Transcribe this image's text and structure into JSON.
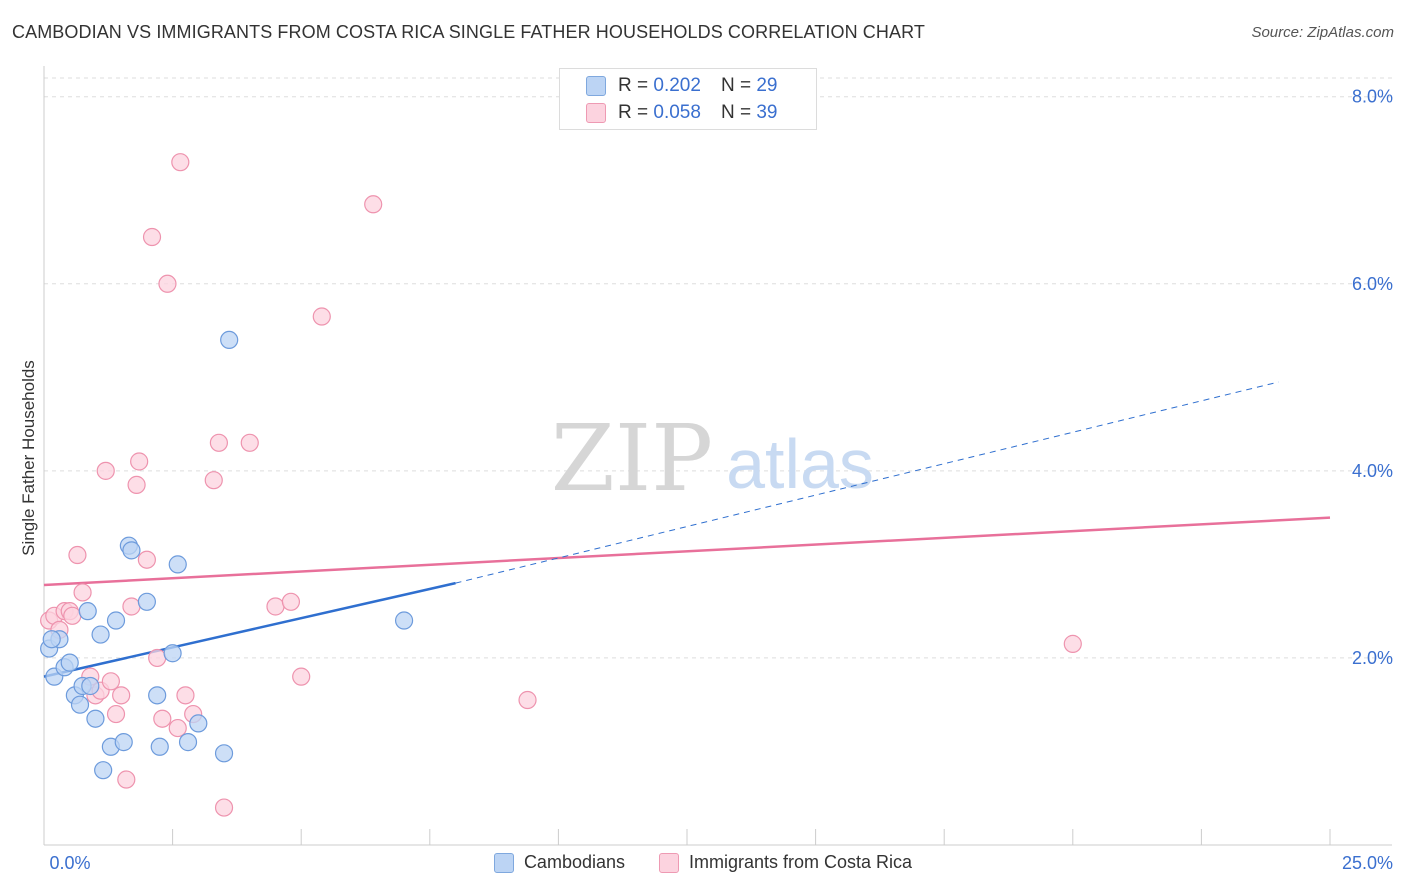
{
  "title": "CAMBODIAN VS IMMIGRANTS FROM COSTA RICA SINGLE FATHER HOUSEHOLDS CORRELATION CHART",
  "source": "Source: ZipAtlas.com",
  "watermark": {
    "zip": "ZIP",
    "atlas": "atlas"
  },
  "stats": [
    {
      "r_label": "R =",
      "r_value": "0.202",
      "n_label": "N =",
      "n_value": "29"
    },
    {
      "r_label": "R =",
      "r_value": "0.058",
      "n_label": "N =",
      "n_value": "39"
    }
  ],
  "legend": {
    "series1": "Cambodians",
    "series2": "Immigrants from Costa Rica"
  },
  "colors": {
    "blue_fill": "#bcd4f4",
    "blue_stroke": "#6d9bdc",
    "blue_line": "#2f6fcf",
    "pink_fill": "#fcd3df",
    "pink_stroke": "#ee93ae",
    "pink_line": "#e8709a",
    "tick_text": "#3a6fcf",
    "grid": "#dddddd"
  },
  "chart_data": {
    "type": "scatter",
    "title": "CAMBODIAN VS IMMIGRANTS FROM COSTA RICA SINGLE FATHER HOUSEHOLDS CORRELATION CHART",
    "xlabel": "",
    "ylabel": "Single Father Households",
    "xlim": [
      0,
      25
    ],
    "ylim": [
      0,
      8.2
    ],
    "x_tick_labels": [
      "0.0%",
      "25.0%"
    ],
    "y_ticks": [
      2,
      4,
      6,
      8
    ],
    "y_tick_labels": [
      "2.0%",
      "4.0%",
      "6.0%",
      "8.0%"
    ],
    "grid": true,
    "series": [
      {
        "name": "Cambodians",
        "r": 0.202,
        "n": 29,
        "points": [
          [
            0.1,
            2.1
          ],
          [
            0.2,
            1.8
          ],
          [
            0.3,
            2.2
          ],
          [
            0.4,
            1.9
          ],
          [
            0.5,
            1.95
          ],
          [
            0.6,
            1.6
          ],
          [
            0.7,
            1.5
          ],
          [
            0.75,
            1.7
          ],
          [
            0.85,
            2.5
          ],
          [
            0.9,
            1.7
          ],
          [
            1.0,
            1.35
          ],
          [
            1.1,
            2.25
          ],
          [
            1.15,
            0.8
          ],
          [
            1.3,
            1.05
          ],
          [
            1.4,
            2.4
          ],
          [
            1.55,
            1.1
          ],
          [
            1.65,
            3.2
          ],
          [
            1.7,
            3.15
          ],
          [
            2.0,
            2.6
          ],
          [
            2.2,
            1.6
          ],
          [
            2.25,
            1.05
          ],
          [
            2.5,
            2.05
          ],
          [
            2.6,
            3.0
          ],
          [
            2.8,
            1.1
          ],
          [
            3.0,
            1.3
          ],
          [
            3.5,
            0.98
          ],
          [
            3.6,
            5.4
          ],
          [
            7.0,
            2.4
          ],
          [
            0.15,
            2.2
          ]
        ],
        "trend": {
          "x0": 0,
          "y0": 1.8,
          "x1": 8,
          "y1": 2.8,
          "extend_x": 24,
          "extend_y": 4.95
        }
      },
      {
        "name": "Immigrants from Costa Rica",
        "r": 0.058,
        "n": 39,
        "points": [
          [
            0.1,
            2.4
          ],
          [
            0.2,
            2.45
          ],
          [
            0.3,
            2.3
          ],
          [
            0.4,
            2.5
          ],
          [
            0.5,
            2.5
          ],
          [
            0.55,
            2.45
          ],
          [
            0.65,
            3.1
          ],
          [
            0.75,
            2.7
          ],
          [
            0.9,
            1.8
          ],
          [
            1.0,
            1.6
          ],
          [
            1.1,
            1.65
          ],
          [
            1.2,
            4.0
          ],
          [
            1.3,
            1.75
          ],
          [
            1.4,
            1.4
          ],
          [
            1.5,
            1.6
          ],
          [
            1.6,
            0.7
          ],
          [
            1.7,
            2.55
          ],
          [
            1.8,
            3.85
          ],
          [
            1.85,
            4.1
          ],
          [
            2.0,
            3.05
          ],
          [
            2.1,
            6.5
          ],
          [
            2.2,
            2.0
          ],
          [
            2.3,
            1.35
          ],
          [
            2.4,
            6.0
          ],
          [
            2.6,
            1.25
          ],
          [
            2.65,
            7.3
          ],
          [
            2.75,
            1.6
          ],
          [
            2.9,
            1.4
          ],
          [
            3.3,
            3.9
          ],
          [
            3.4,
            4.3
          ],
          [
            3.5,
            0.4
          ],
          [
            4.0,
            4.3
          ],
          [
            4.5,
            2.55
          ],
          [
            4.8,
            2.6
          ],
          [
            5.0,
            1.8
          ],
          [
            5.4,
            5.65
          ],
          [
            6.4,
            6.85
          ],
          [
            9.4,
            1.55
          ],
          [
            20.0,
            2.15
          ]
        ],
        "trend": {
          "x0": 0,
          "y0": 2.78,
          "x1": 25,
          "y1": 3.5
        }
      }
    ]
  }
}
